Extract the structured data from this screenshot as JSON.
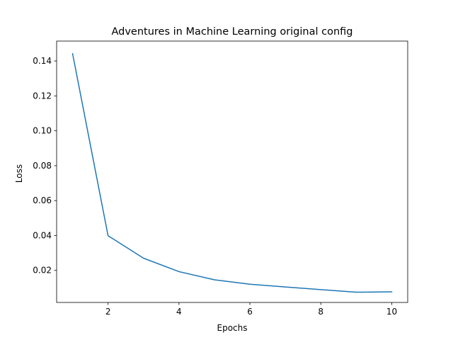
{
  "chart_data": {
    "type": "line",
    "title": "Adventures in Machine Learning original config",
    "xlabel": "Epochs",
    "ylabel": "Loss",
    "xlim": [
      0.55,
      10.45
    ],
    "ylim": [
      0.00163,
      0.1514
    ],
    "xticks": [
      2,
      4,
      6,
      8,
      10
    ],
    "xtick_labels": [
      "2",
      "4",
      "6",
      "8",
      "10"
    ],
    "yticks": [
      0.02,
      0.04,
      0.06,
      0.08,
      0.1,
      0.12,
      0.14
    ],
    "ytick_labels": [
      "0.02",
      "0.04",
      "0.06",
      "0.08",
      "0.10",
      "0.12",
      "0.14"
    ],
    "grid": false,
    "series": [
      {
        "color": "#1f77b4",
        "x": [
          1,
          2,
          3,
          4,
          5,
          6,
          7,
          8,
          9,
          10
        ],
        "y": [
          0.1442,
          0.0399,
          0.027,
          0.0193,
          0.0146,
          0.0121,
          0.0105,
          0.009,
          0.0075,
          0.0077
        ]
      }
    ]
  }
}
